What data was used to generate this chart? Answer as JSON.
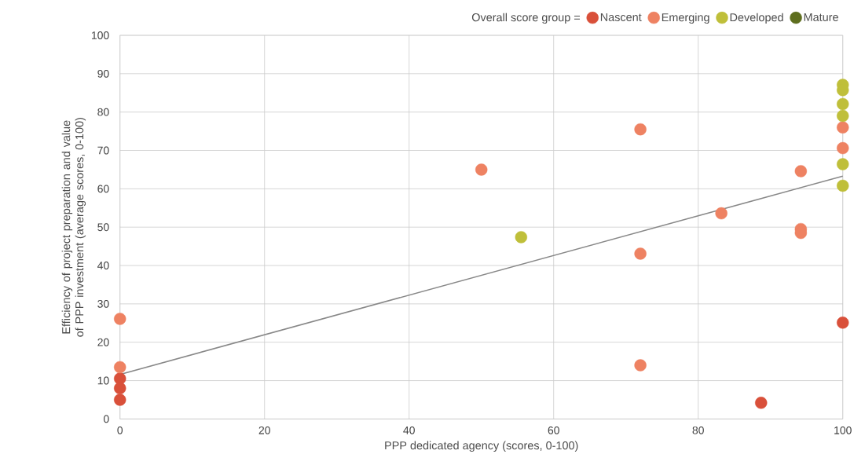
{
  "chart_data": {
    "type": "scatter",
    "xlabel": "PPP dedicated agency (scores, 0-100)",
    "ylabel": "Efficiency of project preparation and value of PPP investment (average scores, 0-100)",
    "legend_title": "Overall score group =",
    "xlim": [
      0,
      100
    ],
    "ylim": [
      0,
      100
    ],
    "xticks": [
      0,
      20,
      40,
      60,
      80,
      100
    ],
    "yticks": [
      0,
      10,
      20,
      30,
      40,
      50,
      60,
      70,
      80,
      90,
      100
    ],
    "grid": true,
    "legend": "top right",
    "series": [
      {
        "name": "Nascent",
        "color": "#d9503a",
        "x": [
          0,
          0,
          0,
          88.7,
          100
        ],
        "values": [
          10.5,
          8,
          5,
          4.2,
          25.1
        ]
      },
      {
        "name": "Emerging",
        "color": "#ee8262",
        "x": [
          0,
          0,
          50,
          72,
          72,
          72,
          83.2,
          94.2,
          94.2,
          94.2,
          100,
          100
        ],
        "values": [
          26.1,
          13.5,
          65,
          75.5,
          43.1,
          14,
          53.6,
          64.6,
          49.5,
          48.5,
          76,
          70.6
        ]
      },
      {
        "name": "Developed",
        "color": "#bfbf3a",
        "x": [
          55.5,
          100,
          100,
          100,
          100,
          100,
          100
        ],
        "values": [
          47.4,
          87.1,
          85.7,
          82.1,
          79,
          66.4,
          60.8
        ]
      },
      {
        "name": "Mature",
        "color": "#5e6e1e"
      },
      {
        "type": "line",
        "color": "#888888",
        "x": [
          0,
          100
        ],
        "values": [
          11.6,
          63.3
        ]
      }
    ]
  }
}
